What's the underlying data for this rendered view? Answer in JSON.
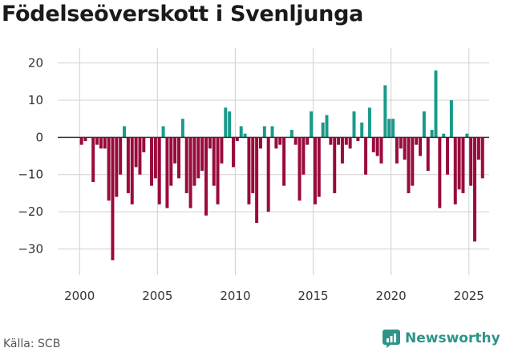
{
  "title": "Födelseöverskott i Svenljunga",
  "source": "Källa: SCB",
  "brand": {
    "name": "Newsworthy",
    "icon": "newsworthy-logo-icon"
  },
  "colors": {
    "positive": "#1a9a8a",
    "negative": "#990a3d",
    "grid": "#d0d0d0",
    "zero": "#333333",
    "brand": "#2e9489"
  },
  "chart_data": {
    "type": "bar",
    "title": "Födelseöverskott i Svenljunga",
    "xlabel": "",
    "ylabel": "",
    "ylim": [
      -37,
      24
    ],
    "xlim": [
      1998.6,
      2026.3
    ],
    "yticks": [
      20,
      10,
      0,
      -10,
      -20,
      -30
    ],
    "ytick_labels": [
      "20",
      "10",
      "0",
      "−10",
      "−20",
      "−30"
    ],
    "xticks": [
      2000,
      2005,
      2010,
      2015,
      2020,
      2025
    ],
    "xtick_labels": [
      "2000",
      "2005",
      "2010",
      "2015",
      "2020",
      "2025"
    ],
    "grid": true,
    "frequency": "quarterly",
    "start_year": 2000,
    "values": [
      -2,
      -1,
      0,
      -12,
      -2,
      -3,
      -3,
      -17,
      -33,
      -16,
      -10,
      3,
      -15,
      -18,
      -8,
      -10,
      -4,
      0,
      -13,
      -11,
      -18,
      3,
      -19,
      -13,
      -7,
      -11,
      5,
      -15,
      -19,
      -13,
      -11,
      -9,
      -21,
      -3,
      -13,
      -18,
      -7,
      8,
      7,
      -8,
      -1,
      3,
      1,
      -18,
      -15,
      -23,
      -3,
      3,
      -20,
      3,
      -3,
      -2,
      -13,
      0,
      2,
      -2,
      -17,
      -10,
      -2,
      7,
      -18,
      -16,
      4,
      6,
      -2,
      -15,
      -2,
      -7,
      -2,
      -3,
      7,
      -1,
      4,
      -10,
      8,
      -4,
      -5,
      -7,
      14,
      5,
      5,
      -7,
      -3,
      -6,
      -15,
      -13,
      -2,
      -5,
      7,
      -9,
      2,
      18,
      -19,
      1,
      -10,
      10,
      -18,
      -14,
      -15,
      1,
      -13,
      -28,
      -6,
      -11
    ]
  }
}
